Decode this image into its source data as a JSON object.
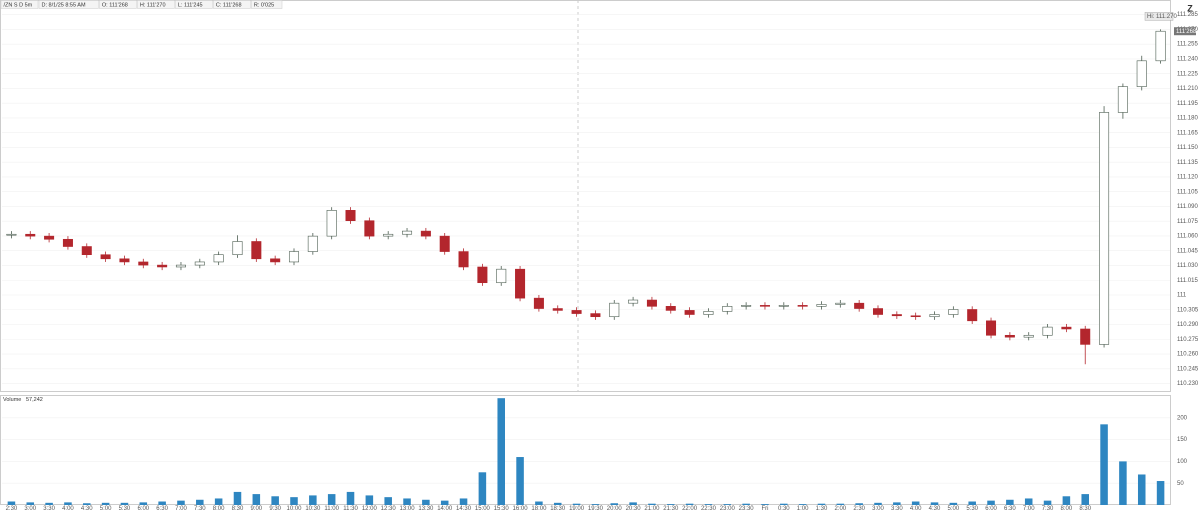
{
  "chart_data": {
    "type": "candlestick",
    "info": [
      "/ZN S D 5m",
      "D: 8/1/25 8:55 AM",
      "O: 111'268",
      "H: 111'270",
      "L: 111'245",
      "C: 111'268",
      "R: 0'025"
    ],
    "high_label": "Hi: 111.270",
    "last_label": "111'268",
    "volume_title": "Volume",
    "volume_total": "57,242",
    "x_labels": [
      "2:30",
      "3:00",
      "3:30",
      "4:00",
      "4:30",
      "5:00",
      "5:30",
      "6:00",
      "6:30",
      "7:00",
      "7:30",
      "8:00",
      "8:30",
      "9:00",
      "9:30",
      "10:00",
      "10:30",
      "11:00",
      "11:30",
      "12:00",
      "12:30",
      "13:00",
      "13:30",
      "14:00",
      "14:30",
      "15:00",
      "15:30",
      "16:00",
      "18:00",
      "18:30",
      "19:00",
      "19:30",
      "20:00",
      "20:30",
      "21:00",
      "21:30",
      "22:00",
      "22:30",
      "23:00",
      "23:30",
      "Fri",
      "0:30",
      "1:00",
      "1:30",
      "2:00",
      "2:30",
      "3:00",
      "3:30",
      "4:00",
      "4:30",
      "5:00",
      "5:30",
      "6:00",
      "6:30",
      "7:00",
      "7:30",
      "8:00",
      "8:30"
    ],
    "open": [
      111.19,
      111.193,
      111.187,
      111.177,
      111.154,
      111.128,
      111.115,
      111.105,
      111.095,
      111.089,
      111.095,
      111.105,
      111.128,
      111.17,
      111.115,
      111.105,
      111.138,
      111.187,
      111.269,
      111.236,
      111.187,
      111.193,
      111.203,
      111.187,
      111.138,
      111.089,
      111.039,
      111.082,
      110.99,
      110.957,
      110.951,
      110.941,
      110.931,
      110.974,
      110.984,
      110.964,
      110.951,
      110.938,
      110.948,
      110.964,
      110.967,
      110.964,
      110.967,
      110.964,
      110.97,
      110.974,
      110.957,
      110.938,
      110.934,
      110.931,
      110.938,
      110.954,
      110.918,
      110.872,
      110.866,
      110.872,
      110.898,
      110.892,
      110.843,
      111.58,
      111.662,
      111.744
    ],
    "high": [
      111.203,
      111.203,
      111.197,
      111.187,
      111.164,
      111.138,
      111.125,
      111.115,
      111.105,
      111.105,
      111.115,
      111.138,
      111.19,
      111.18,
      111.125,
      111.148,
      111.197,
      111.279,
      111.279,
      111.246,
      111.203,
      111.213,
      111.213,
      111.197,
      111.148,
      111.099,
      111.092,
      111.092,
      111.0,
      110.967,
      110.961,
      110.951,
      110.984,
      110.994,
      110.994,
      110.974,
      110.961,
      110.958,
      110.974,
      110.977,
      110.977,
      110.977,
      110.977,
      110.98,
      110.984,
      110.984,
      110.967,
      110.948,
      110.944,
      110.948,
      110.964,
      110.964,
      110.928,
      110.882,
      110.882,
      110.908,
      110.908,
      110.902,
      111.6,
      111.672,
      111.76,
      111.844
    ],
    "low": [
      111.18,
      111.177,
      111.167,
      111.144,
      111.118,
      111.105,
      111.095,
      111.085,
      111.079,
      111.079,
      111.085,
      111.095,
      111.118,
      111.105,
      111.095,
      111.095,
      111.128,
      111.177,
      111.226,
      111.177,
      111.177,
      111.183,
      111.177,
      111.128,
      111.079,
      111.029,
      111.029,
      110.98,
      110.947,
      110.941,
      110.931,
      110.921,
      110.921,
      110.964,
      110.954,
      110.941,
      110.928,
      110.928,
      110.938,
      110.954,
      110.954,
      110.954,
      110.954,
      110.954,
      110.96,
      110.947,
      110.928,
      110.924,
      110.921,
      110.921,
      110.928,
      110.908,
      110.862,
      110.856,
      110.856,
      110.862,
      110.882,
      110.78,
      110.833,
      111.56,
      111.65,
      111.735
    ],
    "close": [
      111.193,
      111.187,
      111.177,
      111.154,
      111.128,
      111.115,
      111.105,
      111.095,
      111.089,
      111.095,
      111.105,
      111.128,
      111.17,
      111.115,
      111.105,
      111.138,
      111.187,
      111.269,
      111.236,
      111.187,
      111.193,
      111.203,
      111.187,
      111.138,
      111.089,
      111.039,
      111.082,
      110.99,
      110.957,
      110.951,
      110.941,
      110.931,
      110.974,
      110.984,
      110.964,
      110.951,
      110.938,
      110.948,
      110.964,
      110.967,
      110.964,
      110.967,
      110.964,
      110.97,
      110.974,
      110.957,
      110.938,
      110.934,
      110.931,
      110.938,
      110.954,
      110.918,
      110.872,
      110.866,
      110.872,
      110.898,
      110.892,
      110.843,
      111.58,
      111.662,
      111.744,
      111.838
    ],
    "volume": [
      8,
      6,
      5,
      6,
      4,
      5,
      5,
      6,
      8,
      10,
      12,
      15,
      30,
      25,
      20,
      18,
      22,
      25,
      30,
      22,
      18,
      15,
      12,
      10,
      15,
      75,
      245,
      110,
      8,
      5,
      3,
      2,
      4,
      6,
      3,
      2,
      3,
      2,
      2,
      3,
      2,
      3,
      2,
      3,
      3,
      4,
      5,
      6,
      8,
      6,
      5,
      8,
      10,
      12,
      15,
      10,
      20,
      25,
      185,
      100,
      70,
      55
    ],
    "up_color": "#ffffff",
    "up_edge_color": "#4d5e52",
    "down_color": "#b3262d",
    "volume_color": "#2e86c1",
    "grid": true,
    "ylim": [
      110.695,
      111.934
    ],
    "yticks": [
      {
        "value": 111.890625,
        "label": "111.285"
      },
      {
        "value": 111.84375,
        "label": "111.270"
      },
      {
        "value": 111.796875,
        "label": "111.255"
      },
      {
        "value": 111.75,
        "label": "111.240"
      },
      {
        "value": 111.703125,
        "label": "111.225"
      },
      {
        "value": 111.65625,
        "label": "111.210"
      },
      {
        "value": 111.609375,
        "label": "111.195"
      },
      {
        "value": 111.5625,
        "label": "111.180"
      },
      {
        "value": 111.515625,
        "label": "111.165"
      },
      {
        "value": 111.46875,
        "label": "111.150"
      },
      {
        "value": 111.421875,
        "label": "111.135"
      },
      {
        "value": 111.375,
        "label": "111.120"
      },
      {
        "value": 111.328125,
        "label": "111.105"
      },
      {
        "value": 111.28125,
        "label": "111.090"
      },
      {
        "value": 111.234375,
        "label": "111.075"
      },
      {
        "value": 111.1875,
        "label": "111.060"
      },
      {
        "value": 111.140625,
        "label": "111.045"
      },
      {
        "value": 111.09375,
        "label": "111.030"
      },
      {
        "value": 111.046875,
        "label": "111.015"
      },
      111,
      {
        "value": 110.953125,
        "label": "110.305"
      },
      {
        "value": 110.90625,
        "label": "110.290"
      },
      {
        "value": 110.859375,
        "label": "110.275"
      },
      {
        "value": 110.8125,
        "label": "110.260"
      },
      {
        "value": 110.765625,
        "label": "110.245"
      },
      {
        "value": 110.71875,
        "label": "110.230"
      }
    ],
    "y2lim": [
      0,
      250
    ],
    "y2ticks": [
      50,
      100,
      150,
      200
    ]
  }
}
